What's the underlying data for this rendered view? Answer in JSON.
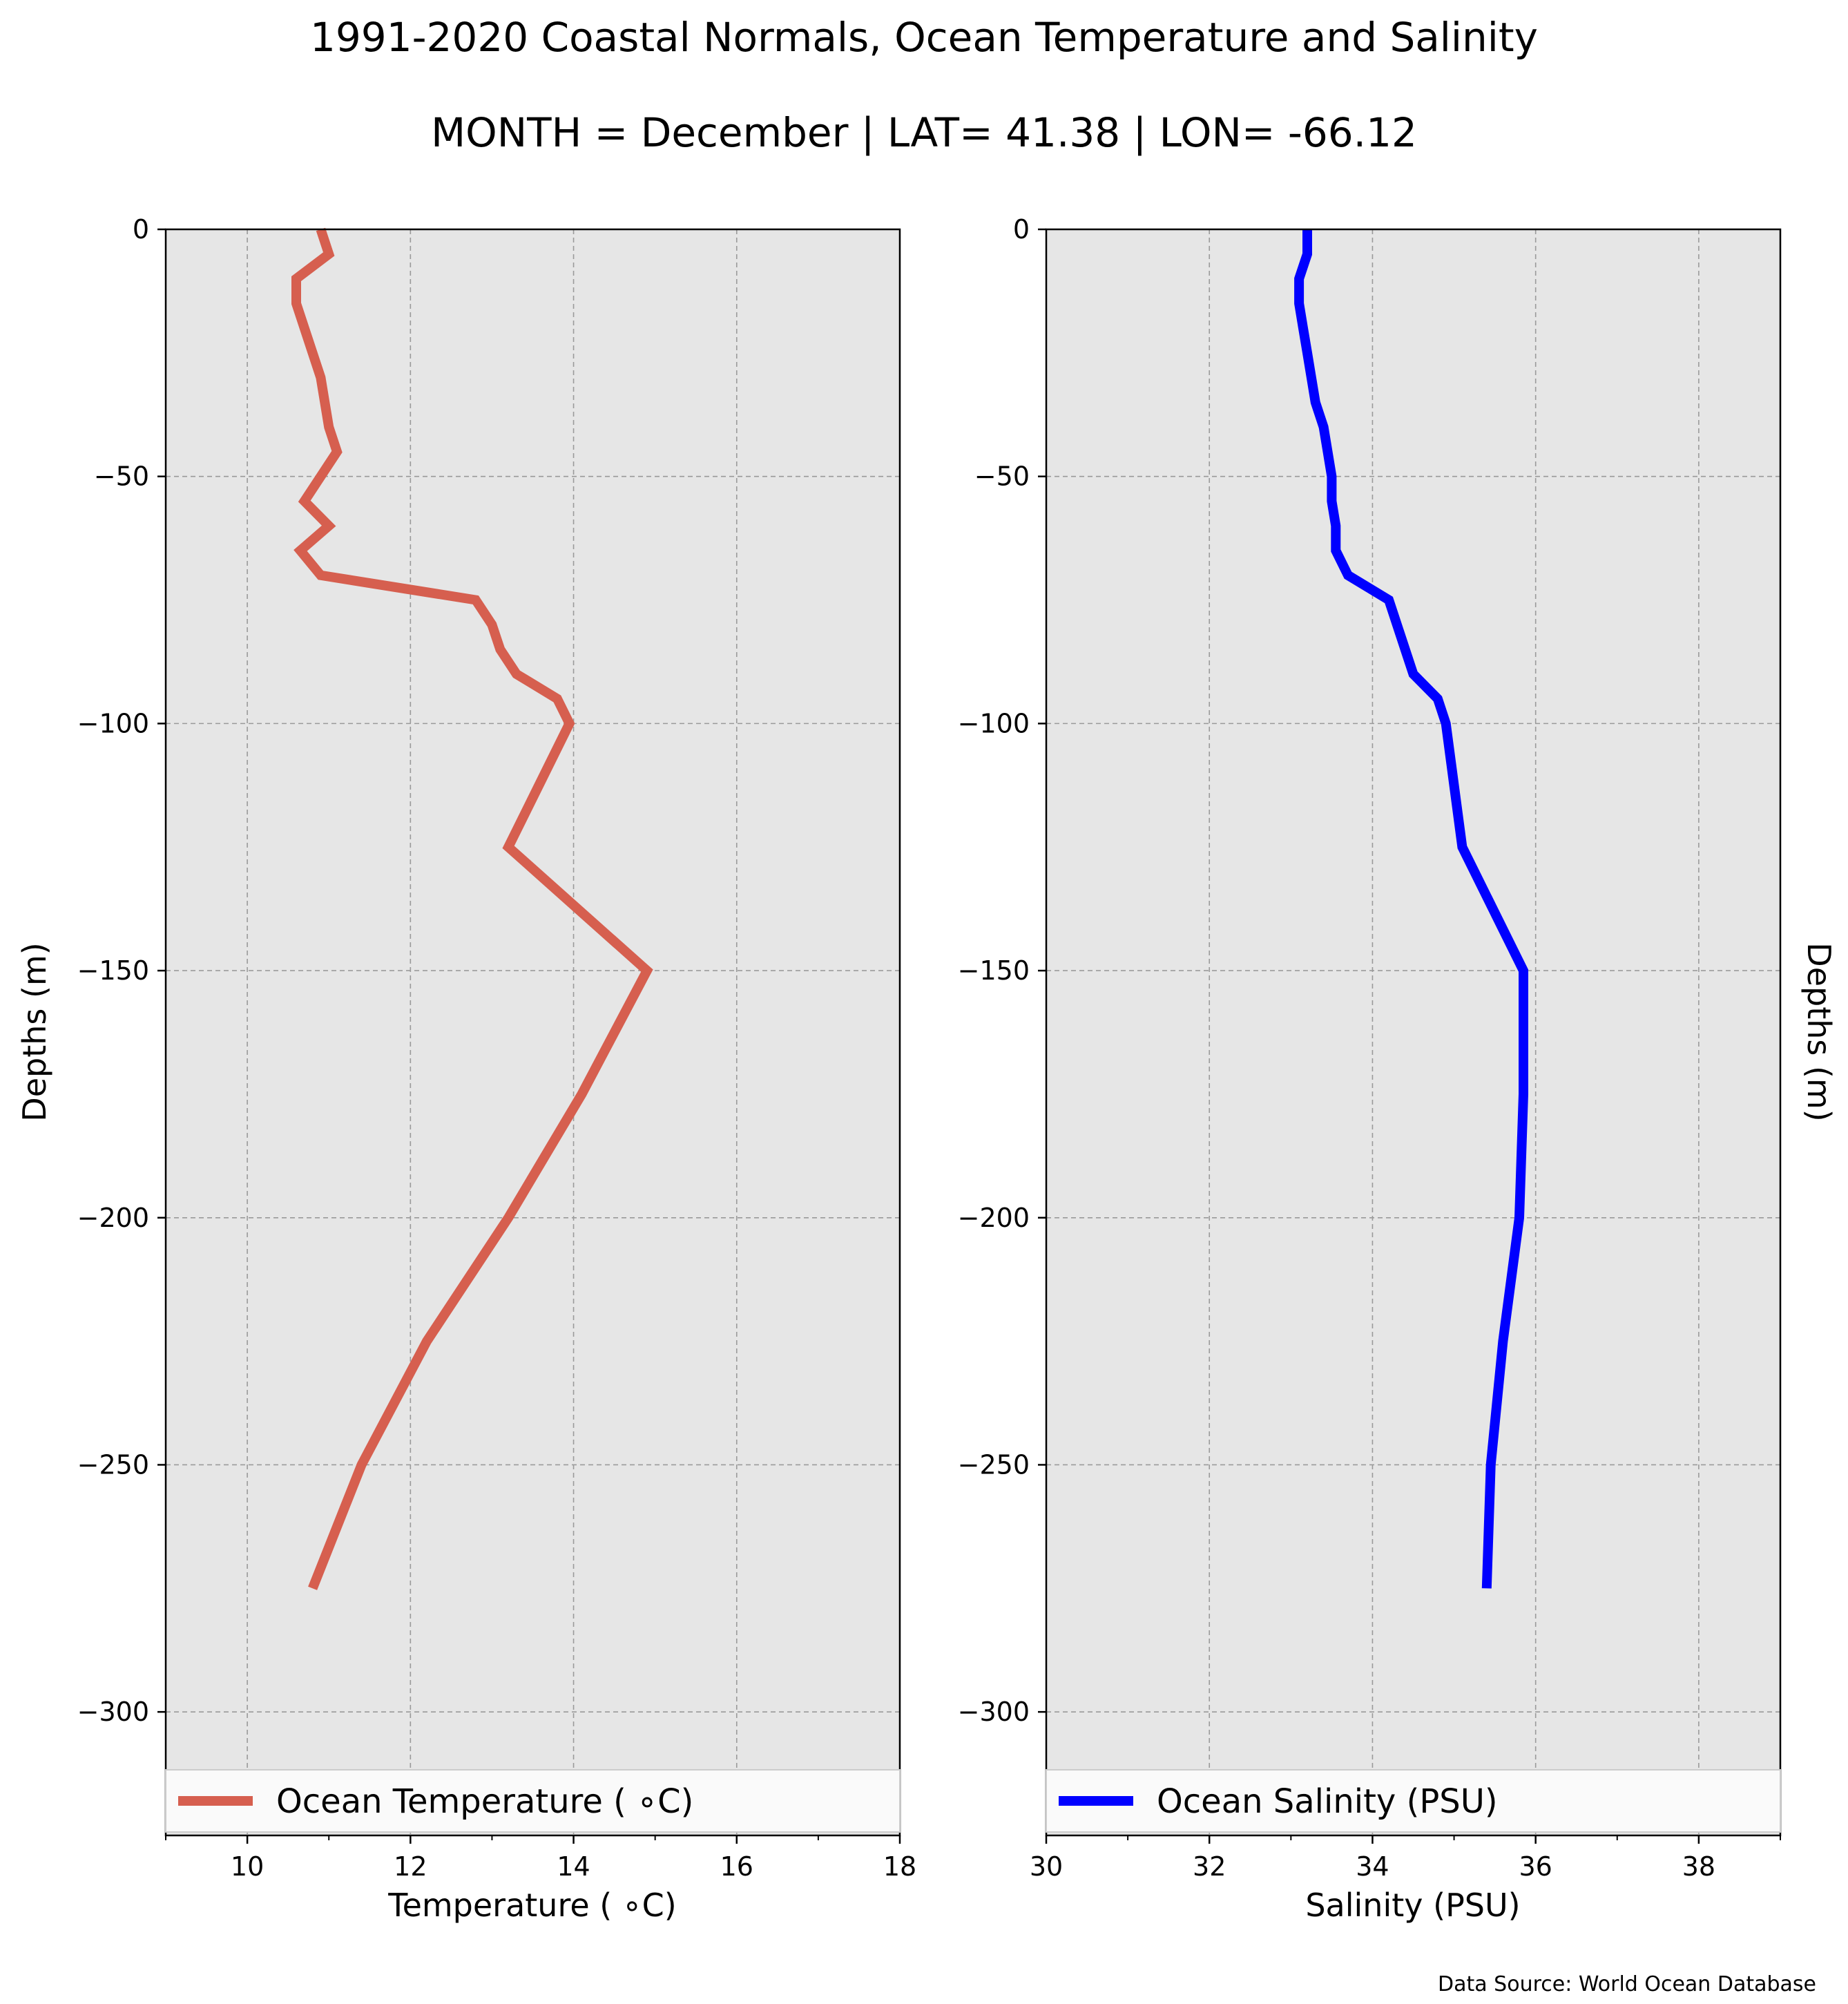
{
  "title": "1991-2020 Coastal Normals, Ocean Temperature and Salinity",
  "subtitle": "MONTH = December | LAT= 41.38 | LON= -66.12",
  "source_note": "Data Source: World Ocean Database",
  "colors": {
    "temperature": "#d65f4f",
    "salinity": "#0000ff",
    "panel_bg": "#e6e6e6"
  },
  "chart_data": [
    {
      "type": "line",
      "xlabel": "Temperature ($^\\circ$C)",
      "xlabel_display": "Temperature ( ∘C)",
      "ylabel": "Depths (m)",
      "xlim": [
        9,
        18
      ],
      "ylim": [
        -325,
        0
      ],
      "x_ticks": [
        10,
        12,
        14,
        16,
        18
      ],
      "x_tick_labels": [
        "10",
        "12",
        "14",
        "16",
        "18"
      ],
      "y_ticks": [
        0,
        -50,
        -100,
        -150,
        -200,
        -250,
        -300
      ],
      "y_tick_labels": [
        "0",
        "−50",
        "−100",
        "−150",
        "−200",
        "−250",
        "−300"
      ],
      "grid": true,
      "legend_position": "lower-center",
      "series": [
        {
          "name": "Ocean Temperature ( ∘C)",
          "depth": [
            0,
            -5,
            -10,
            -15,
            -20,
            -25,
            -30,
            -35,
            -40,
            -45,
            -50,
            -55,
            -60,
            -65,
            -70,
            -75,
            -80,
            -85,
            -90,
            -95,
            -100,
            -125,
            -150,
            -175,
            -200,
            -225,
            -250,
            -275
          ],
          "values": [
            10.9,
            11.0,
            10.6,
            10.6,
            10.7,
            10.8,
            10.9,
            10.95,
            11.0,
            11.1,
            10.9,
            10.7,
            11.0,
            10.65,
            10.9,
            12.8,
            13.0,
            13.1,
            13.3,
            13.8,
            13.95,
            13.2,
            14.9,
            14.1,
            13.2,
            12.2,
            11.4,
            10.8
          ]
        }
      ]
    },
    {
      "type": "line",
      "xlabel": "Salinity (PSU)",
      "ylabel": "Depths (m)",
      "xlim": [
        30,
        39
      ],
      "ylim": [
        -325,
        0
      ],
      "x_ticks": [
        30,
        32,
        34,
        36,
        38
      ],
      "x_tick_labels": [
        "30",
        "32",
        "34",
        "36",
        "38"
      ],
      "y_ticks": [
        0,
        -50,
        -100,
        -150,
        -200,
        -250,
        -300
      ],
      "y_tick_labels": [
        "0",
        "−50",
        "−100",
        "−150",
        "−200",
        "−250",
        "−300"
      ],
      "grid": true,
      "legend_position": "lower-center",
      "series": [
        {
          "name": "Ocean Salinity (PSU)",
          "depth": [
            0,
            -5,
            -10,
            -15,
            -20,
            -25,
            -30,
            -35,
            -40,
            -45,
            -50,
            -55,
            -60,
            -65,
            -70,
            -75,
            -80,
            -85,
            -90,
            -95,
            -100,
            -125,
            -150,
            -175,
            -200,
            -225,
            -250,
            -275
          ],
          "values": [
            33.2,
            33.2,
            33.1,
            33.1,
            33.15,
            33.2,
            33.25,
            33.3,
            33.4,
            33.45,
            33.5,
            33.5,
            33.55,
            33.55,
            33.7,
            34.2,
            34.3,
            34.4,
            34.5,
            34.8,
            34.9,
            35.1,
            35.85,
            35.85,
            35.8,
            35.6,
            35.45,
            35.4
          ]
        }
      ]
    }
  ]
}
